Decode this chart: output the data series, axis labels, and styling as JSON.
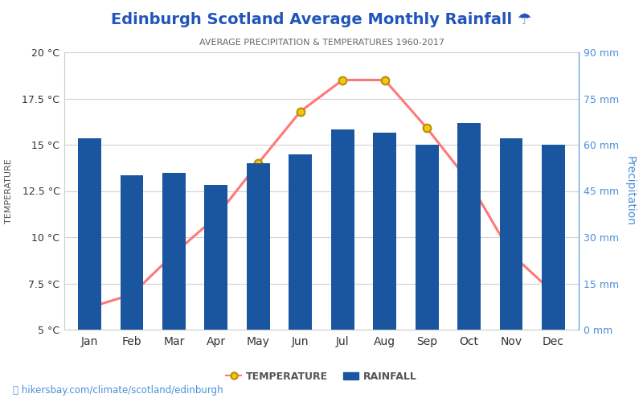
{
  "title": "Edinburgh Scotland Average Monthly Rainfall ☂",
  "subtitle": "AVERAGE PRECIPITATION & TEMPERATURES 1960-2017",
  "months": [
    "Jan",
    "Feb",
    "Mar",
    "Apr",
    "May",
    "Jun",
    "Jul",
    "Aug",
    "Sep",
    "Oct",
    "Nov",
    "Dec"
  ],
  "rainfall_mm": [
    62,
    50,
    51,
    47,
    54,
    57,
    65,
    64,
    60,
    67,
    62,
    60
  ],
  "temperature_c": [
    6.2,
    6.9,
    9.1,
    11.1,
    14.0,
    16.8,
    18.5,
    18.5,
    15.9,
    13.0,
    9.1,
    7.0
  ],
  "bar_color": "#1a56a0",
  "line_color": "#ff7878",
  "marker_facecolor": "#f5c518",
  "marker_edgecolor": "#b89000",
  "temp_ylim": [
    5,
    20
  ],
  "temp_yticks": [
    5,
    7.5,
    10,
    12.5,
    15,
    17.5,
    20
  ],
  "rain_ylim": [
    0,
    90
  ],
  "rain_yticks": [
    0,
    15,
    30,
    45,
    60,
    75,
    90
  ],
  "background_color": "#ffffff",
  "grid_color": "#d0d0d0",
  "right_axis_color": "#4a90d9",
  "title_color": "#2255bb",
  "subtitle_color": "#666666",
  "temp_label_color": "#555555",
  "watermark": "hikersbay.com/climate/scotland/edinburgh"
}
